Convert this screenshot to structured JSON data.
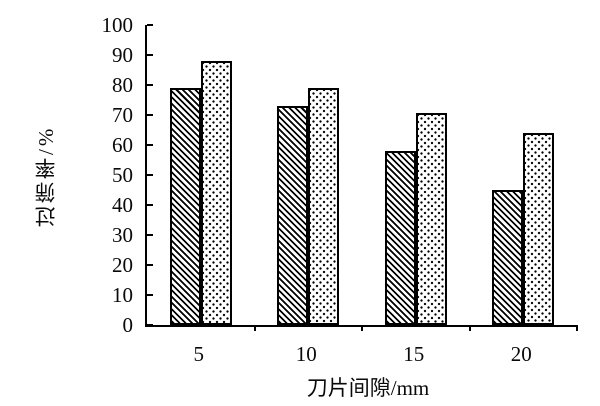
{
  "figure": {
    "background": "#ffffff",
    "ink_color": "#000000"
  },
  "chart_data": {
    "type": "bar",
    "title": "",
    "xlabel": "刀片间隙/mm",
    "ylabel": "过筛率/%",
    "categories": [
      "5",
      "10",
      "15",
      "20"
    ],
    "series": [
      {
        "name": "hatched-bars",
        "pattern": "diagonal-hatch",
        "values": [
          79,
          73,
          58,
          45
        ]
      },
      {
        "name": "dotted-bars",
        "pattern": "dot-grid",
        "values": [
          88,
          79,
          70.5,
          64
        ]
      }
    ],
    "ylim": [
      0,
      100
    ],
    "ytick_step": 10,
    "yticks": [
      0,
      10,
      20,
      30,
      40,
      50,
      60,
      70,
      80,
      90,
      100
    ],
    "grid": false,
    "legend": "none",
    "bar_outline_color": "#000000"
  }
}
